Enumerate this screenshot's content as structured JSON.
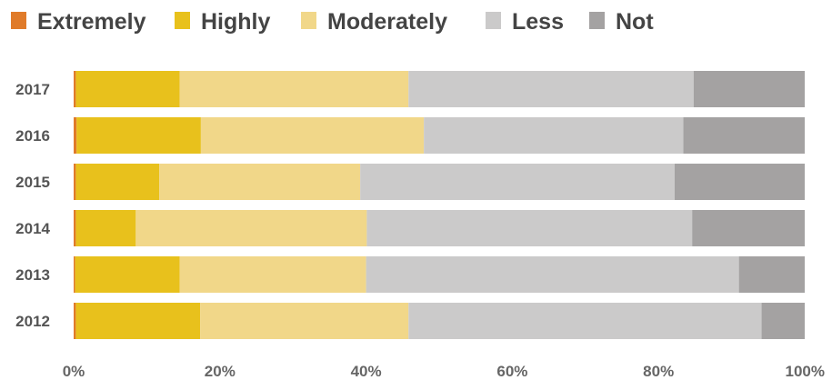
{
  "chart_data": {
    "type": "bar",
    "orientation": "horizontal",
    "stacked": true,
    "categories": [
      "2017",
      "2016",
      "2015",
      "2014",
      "2013",
      "2012"
    ],
    "series": [
      {
        "name": "Extremely",
        "color": "#e07b2a",
        "values": [
          0.3,
          0.4,
          0.3,
          0.3,
          0.2,
          0.3
        ]
      },
      {
        "name": "Highly",
        "color": "#e8c11c",
        "values": [
          14.2,
          17.0,
          11.4,
          8.2,
          14.3,
          17.0
        ]
      },
      {
        "name": "Moderately",
        "color": "#f1d789",
        "values": [
          31.3,
          30.5,
          27.5,
          31.6,
          25.5,
          28.5
        ]
      },
      {
        "name": "Less",
        "color": "#cbcaca",
        "values": [
          39.0,
          35.5,
          43.0,
          44.5,
          51.0,
          48.3
        ]
      },
      {
        "name": "Not",
        "color": "#a4a2a2",
        "values": [
          15.2,
          16.6,
          17.8,
          15.4,
          9.0,
          5.9
        ]
      }
    ],
    "x_ticks": [
      "0%",
      "20%",
      "40%",
      "60%",
      "80%",
      "100%"
    ],
    "xlim": [
      0,
      100
    ],
    "legend_position": "top-left",
    "grid": false
  }
}
